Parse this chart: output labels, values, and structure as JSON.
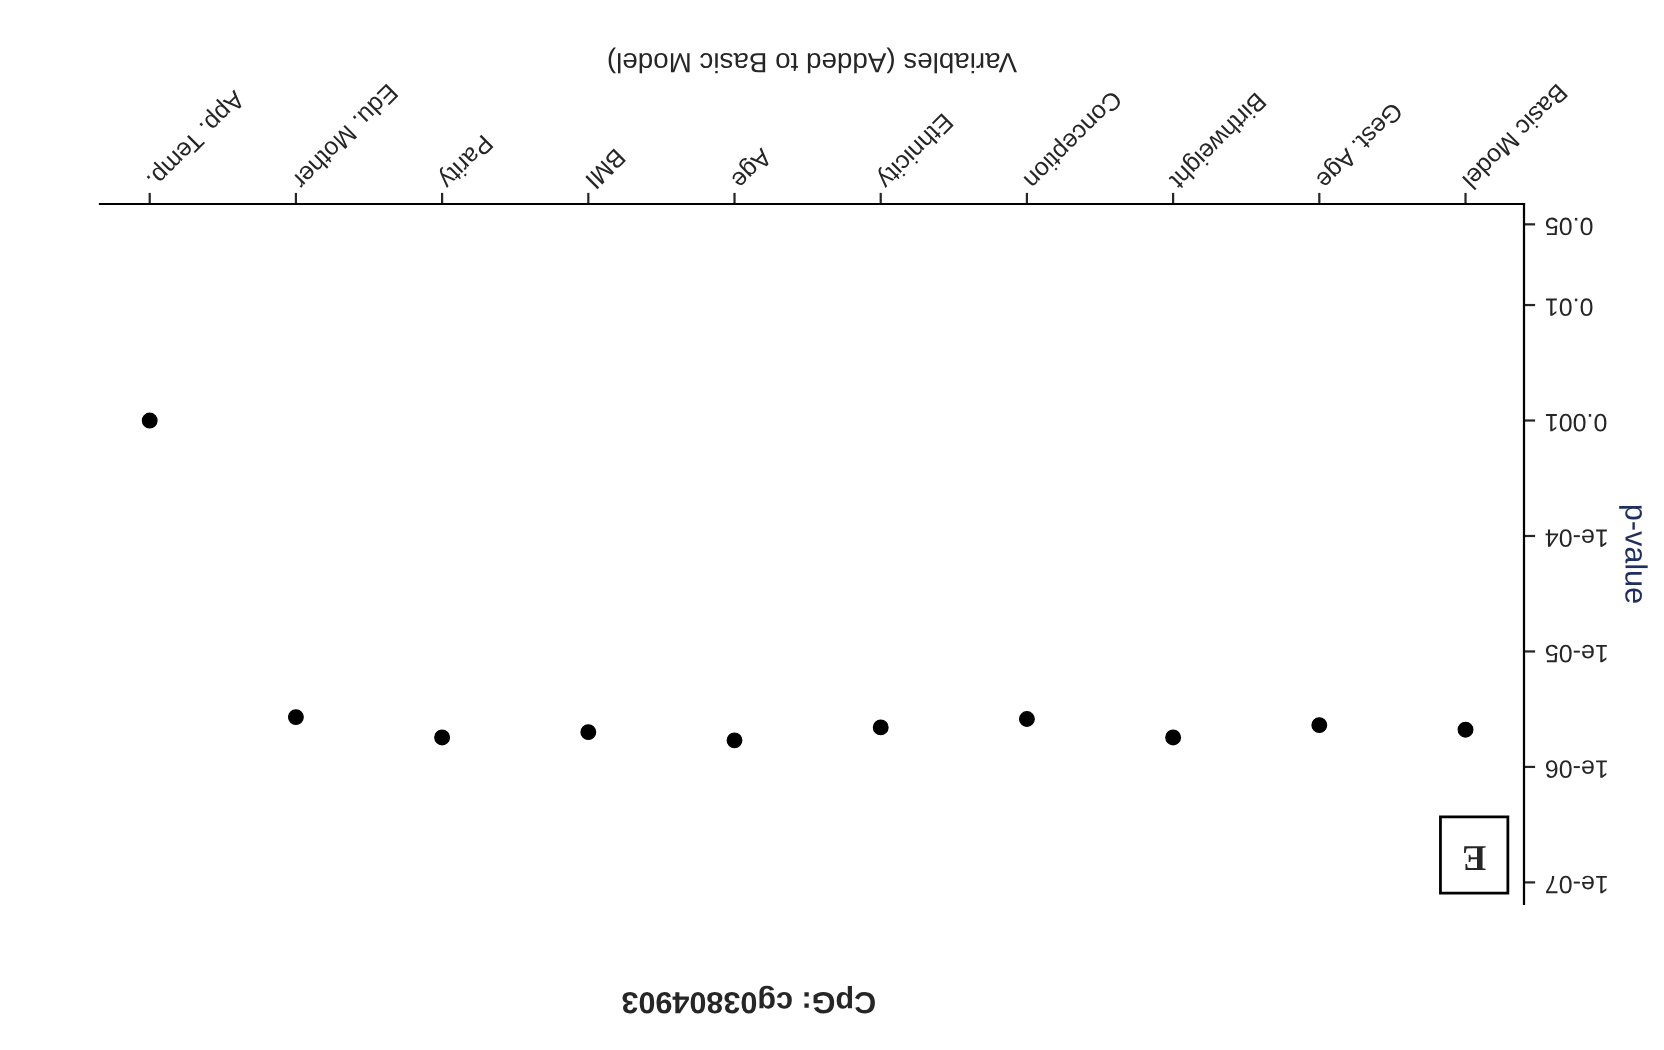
{
  "chart_data": {
    "type": "scatter",
    "title": "CpG: cg03804903",
    "xlabel": "Variables (Added to Basic Model)",
    "ylabel": "p-value",
    "categories": [
      "App. Temp.",
      "Edu. Mother",
      "Parity",
      "BMI",
      "Age",
      "Ethnicity",
      "Conception",
      "Birthweight",
      "Gest. Age",
      "Basic Model"
    ],
    "values": [
      0.001,
      2.7e-06,
      1.8e-06,
      2e-06,
      1.7e-06,
      2.2e-06,
      2.6e-06,
      1.8e-06,
      2.3e-06,
      2.1e-06
    ],
    "color": "#000000",
    "marker": "circle",
    "log": "y",
    "ylim": [
      6.5e-08,
      0.075
    ],
    "yticks": [
      {
        "value": 1e-07,
        "label": "1e-07"
      },
      {
        "value": 1e-06,
        "label": "1e-06"
      },
      {
        "value": 1e-05,
        "label": "1e-05"
      },
      {
        "value": 0.0001,
        "label": "1e-04"
      },
      0.001,
      0.01,
      0.05
    ],
    "annotations": [
      "E"
    ]
  }
}
